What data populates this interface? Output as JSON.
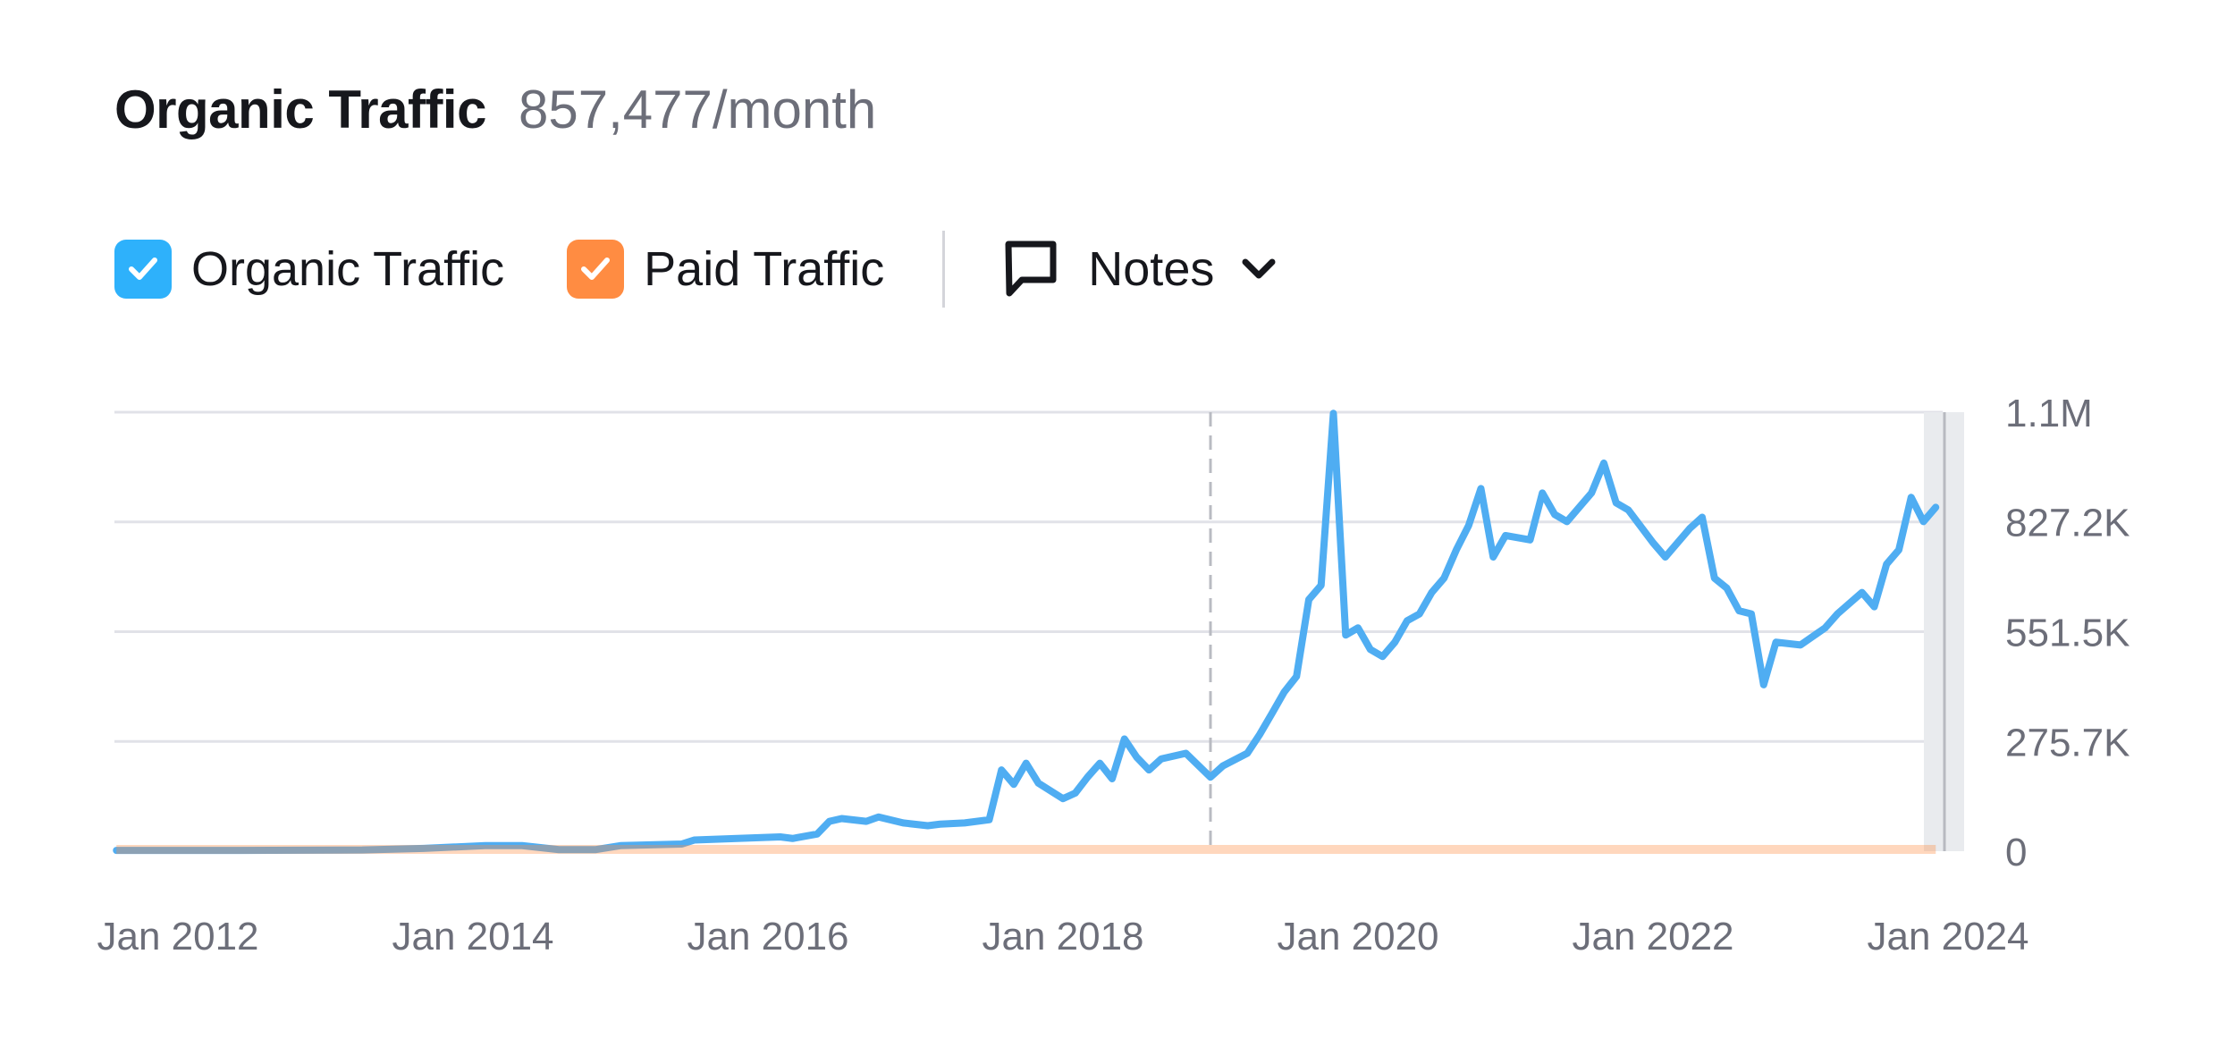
{
  "header": {
    "title": "Organic Traffic",
    "value": "857,477/month"
  },
  "legend": {
    "items": [
      {
        "label": "Organic Traffic",
        "color": "#2eb1fb",
        "checked": true
      },
      {
        "label": "Paid Traffic",
        "color": "#ff8c42",
        "checked": true
      }
    ],
    "notes_label": "Notes",
    "notes_icon": "speech-bubble-icon",
    "chevron_icon": "chevron-down-icon"
  },
  "chart_data": {
    "type": "line",
    "xlabel": "",
    "ylabel": "",
    "x_ticks": [
      "Jan 2012",
      "Jan 2014",
      "Jan 2016",
      "Jan 2018",
      "Jan 2020",
      "Jan 2022",
      "Jan 2024"
    ],
    "y_ticks": [
      "0",
      "275.7K",
      "551.5K",
      "827.2K",
      "1.1M"
    ],
    "y_tick_values": [
      0,
      275700,
      551500,
      827200,
      1102900
    ],
    "ylim": [
      0,
      1102900
    ],
    "xlim": [
      "2011-08",
      "2023-12"
    ],
    "grid": true,
    "marker_line_date": "2019-01",
    "series": [
      {
        "name": "Organic Traffic",
        "color": "#4fadf2",
        "points": [
          [
            "2011-08",
            2000
          ],
          [
            "2012-06",
            2000
          ],
          [
            "2013-04",
            3000
          ],
          [
            "2013-09",
            7000
          ],
          [
            "2014-02",
            14000
          ],
          [
            "2014-05",
            14000
          ],
          [
            "2014-08",
            4000
          ],
          [
            "2014-11",
            4000
          ],
          [
            "2015-01",
            14000
          ],
          [
            "2015-06",
            18000
          ],
          [
            "2015-07",
            28000
          ],
          [
            "2016-02",
            36000
          ],
          [
            "2016-03",
            32000
          ],
          [
            "2016-05",
            43000
          ],
          [
            "2016-06",
            75000
          ],
          [
            "2016-07",
            82000
          ],
          [
            "2016-09",
            75000
          ],
          [
            "2016-10",
            86000
          ],
          [
            "2016-12",
            71000
          ],
          [
            "2017-02",
            64000
          ],
          [
            "2017-03",
            68000
          ],
          [
            "2017-05",
            71000
          ],
          [
            "2017-07",
            79000
          ],
          [
            "2017-08",
            204000
          ],
          [
            "2017-09",
            168000
          ],
          [
            "2017-10",
            221000
          ],
          [
            "2017-11",
            171000
          ],
          [
            "2018-01",
            132000
          ],
          [
            "2018-02",
            146000
          ],
          [
            "2018-03",
            186000
          ],
          [
            "2018-04",
            221000
          ],
          [
            "2018-05",
            182000
          ],
          [
            "2018-06",
            282000
          ],
          [
            "2018-07",
            236000
          ],
          [
            "2018-08",
            204000
          ],
          [
            "2018-09",
            232000
          ],
          [
            "2018-11",
            246000
          ],
          [
            "2019-01",
            186000
          ],
          [
            "2019-02",
            214000
          ],
          [
            "2019-04",
            246000
          ],
          [
            "2019-05",
            293000
          ],
          [
            "2019-06",
            346000
          ],
          [
            "2019-07",
            400000
          ],
          [
            "2019-08",
            439000
          ],
          [
            "2019-09",
            632000
          ],
          [
            "2019-10",
            668000
          ],
          [
            "2019-11",
            1100000
          ],
          [
            "2019-12",
            543000
          ],
          [
            "2020-01",
            561000
          ],
          [
            "2020-02",
            507000
          ],
          [
            "2020-03",
            489000
          ],
          [
            "2020-04",
            525000
          ],
          [
            "2020-05",
            579000
          ],
          [
            "2020-06",
            596000
          ],
          [
            "2020-07",
            650000
          ],
          [
            "2020-08",
            686000
          ],
          [
            "2020-09",
            757000
          ],
          [
            "2020-10",
            818000
          ],
          [
            "2020-11",
            911000
          ],
          [
            "2020-12",
            739000
          ],
          [
            "2021-01",
            793000
          ],
          [
            "2021-03",
            782000
          ],
          [
            "2021-04",
            900000
          ],
          [
            "2021-05",
            846000
          ],
          [
            "2021-06",
            828000
          ],
          [
            "2021-08",
            900000
          ],
          [
            "2021-09",
            975000
          ],
          [
            "2021-10",
            875000
          ],
          [
            "2021-11",
            857000
          ],
          [
            "2022-01",
            775000
          ],
          [
            "2022-02",
            739000
          ],
          [
            "2022-04",
            811000
          ],
          [
            "2022-05",
            839000
          ],
          [
            "2022-06",
            686000
          ],
          [
            "2022-07",
            661000
          ],
          [
            "2022-08",
            604000
          ],
          [
            "2022-09",
            596000
          ],
          [
            "2022-10",
            418000
          ],
          [
            "2022-11",
            525000
          ],
          [
            "2023-01",
            518000
          ],
          [
            "2023-03",
            561000
          ],
          [
            "2023-04",
            596000
          ],
          [
            "2023-06",
            650000
          ],
          [
            "2023-07",
            614000
          ],
          [
            "2023-08",
            721000
          ],
          [
            "2023-09",
            757000
          ],
          [
            "2023-10",
            889000
          ],
          [
            "2023-11",
            828000
          ],
          [
            "2023-12",
            864000
          ]
        ]
      },
      {
        "name": "Paid Traffic",
        "color": "#ff8c42",
        "points": [
          [
            "2011-08",
            0
          ],
          [
            "2023-12",
            0
          ]
        ]
      }
    ]
  }
}
